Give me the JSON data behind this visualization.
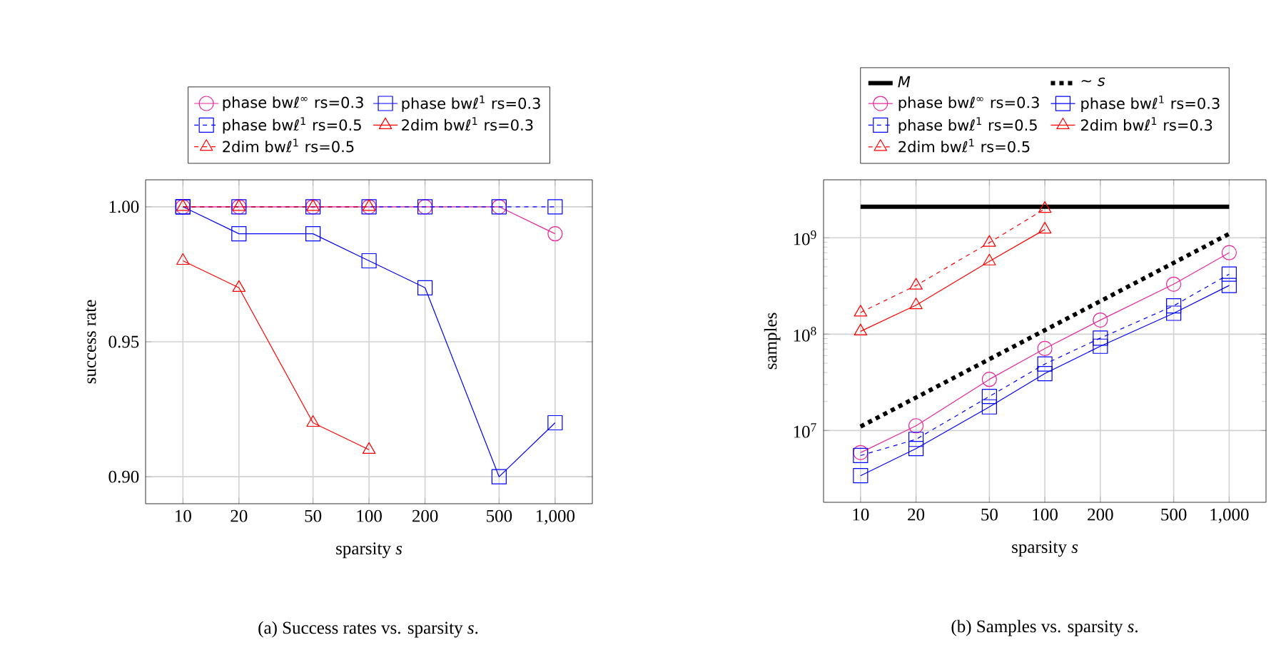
{
  "chart_data": [
    {
      "type": "line",
      "xlabel": "sparsity *s*",
      "ylabel": "success rate",
      "log": "x",
      "grid": true,
      "legend": "top",
      "x": [
        10,
        20,
        50,
        100,
        200,
        500,
        1000
      ],
      "xlim": [
        6.3,
        1585
      ],
      "ylim": [
        0.89,
        1.01
      ],
      "xticks": [
        10,
        20,
        50,
        100,
        200,
        500,
        {
          "value": 1000,
          "label": "1,000"
        }
      ],
      "yticks": [
        {
          "value": 0.9,
          "label": "0.90"
        },
        {
          "value": 0.95,
          "label": "0.95"
        },
        {
          "value": 1.0,
          "label": "1.00"
        }
      ],
      "annotations": [
        "(a) Success rates vs. sparsity *s*."
      ],
      "series": [
        {
          "name": "phase bwℓ$^{∞}$ rs=0.3",
          "color": "#e8289b",
          "marker": "circle",
          "line_style": "solid",
          "values": [
            1.0,
            1.0,
            1.0,
            1.0,
            1.0,
            1.0,
            0.99
          ]
        },
        {
          "name": "phase bwℓ$^{1}$ rs=0.3",
          "color": "#0000ff",
          "marker": "square",
          "line_style": "solid",
          "values": [
            1.0,
            0.99,
            0.99,
            0.98,
            0.97,
            0.9,
            0.92
          ]
        },
        {
          "name": "phase bwℓ$^{1}$ rs=0.5",
          "color": "#0000ff",
          "marker": "square",
          "line_style": "dashed",
          "values": [
            1.0,
            1.0,
            1.0,
            1.0,
            1.0,
            1.0,
            1.0
          ]
        },
        {
          "name": "2dim bwℓ$^{1}$ rs=0.3",
          "color": "#ff0000",
          "marker": "triangle",
          "line_style": "solid",
          "values": [
            0.98,
            0.97,
            0.92,
            0.91,
            null,
            null,
            null
          ]
        },
        {
          "name": "2dim bwℓ$^{1}$ rs=0.5",
          "color": "#ff0000",
          "marker": "triangle",
          "line_style": "dashed",
          "values": [
            1.0,
            1.0,
            1.0,
            1.0,
            null,
            null,
            null
          ]
        }
      ]
    },
    {
      "type": "line",
      "xlabel": "sparsity *s*",
      "ylabel": "samples",
      "log": "xy",
      "grid": true,
      "legend": "top",
      "x": [
        10,
        20,
        50,
        100,
        200,
        500,
        1000
      ],
      "xlim": [
        6.3,
        1585
      ],
      "ylim": [
        1800000,
        4000000000
      ],
      "xticks": [
        10,
        20,
        50,
        100,
        200,
        500,
        {
          "value": 1000,
          "label": "1,000"
        }
      ],
      "yticks": [
        {
          "value": 10000000,
          "label": "10$^{7}$"
        },
        {
          "value": 100000000,
          "label": "10$^{8}$"
        },
        {
          "value": 1000000000,
          "label": "10$^{9}$"
        }
      ],
      "annotations": [
        "(b) Samples vs. sparsity *s*."
      ],
      "series": [
        {
          "name": "*M*",
          "color": "#000000",
          "marker": "none",
          "line_style": "solid",
          "values": [
            2100000000,
            2100000000,
            2100000000,
            2100000000,
            2100000000,
            2100000000,
            2100000000
          ]
        },
        {
          "name": "∼ *s*",
          "color": "#000000",
          "marker": "none",
          "line_style": "dotted",
          "values": [
            11000000,
            22000000,
            55000000,
            110000000,
            220000000,
            550000000,
            1100000000
          ]
        },
        {
          "name": "phase bwℓ$^{∞}$ rs=0.3",
          "color": "#e8289b",
          "marker": "circle",
          "line_style": "solid",
          "values": [
            5900000,
            11200000,
            34000000,
            71000000,
            140000000,
            330000000,
            700000000
          ]
        },
        {
          "name": "phase bwℓ$^{1}$ rs=0.3",
          "color": "#0000ff",
          "marker": "square",
          "line_style": "solid",
          "values": [
            3400000,
            6500000,
            17600000,
            39000000,
            75000000,
            165000000,
            320000000
          ]
        },
        {
          "name": "phase bwℓ$^{1}$ rs=0.5",
          "color": "#0000ff",
          "marker": "square",
          "line_style": "dashed",
          "values": [
            5500000,
            8100000,
            22600000,
            49000000,
            91000000,
            197000000,
            420000000
          ]
        },
        {
          "name": "2dim bwℓ$^{1}$ rs=0.3",
          "color": "#ff0000",
          "marker": "triangle",
          "line_style": "solid",
          "values": [
            107000000,
            200000000,
            570000000,
            1220000000,
            null,
            null,
            null
          ]
        },
        {
          "name": "2dim bwℓ$^{1}$ rs=0.5",
          "color": "#ff0000",
          "marker": "triangle",
          "line_style": "dashed",
          "values": [
            168000000,
            320000000,
            890000000,
            2000000000,
            null,
            null,
            null
          ]
        }
      ]
    }
  ]
}
